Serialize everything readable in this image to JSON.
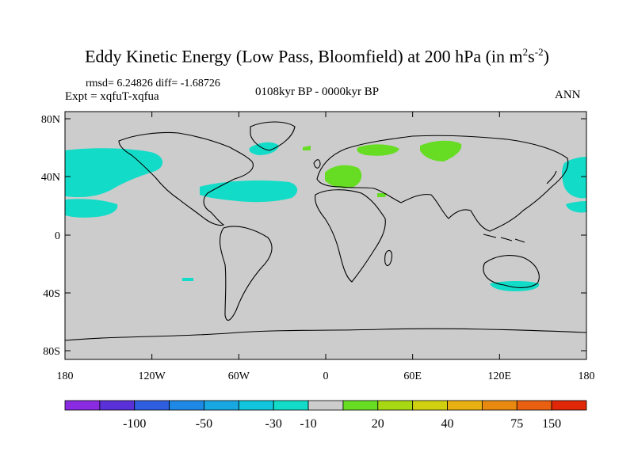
{
  "title": {
    "main": "Eddy Kinetic Energy (Low Pass, Bloomfield) at 200 hPa (in m",
    "sup1": "2",
    "mid": "s",
    "sup2": "-2",
    "close": ")"
  },
  "stats": "rmsd= 6.24826 diff= -1.68726",
  "expt": "Expt = xqfuT-xqfua",
  "period": "0108kyr BP - 0000kyr BP",
  "season": "ANN",
  "map": {
    "lat_ticks": [
      "80N",
      "40N",
      "0",
      "40S",
      "80S"
    ],
    "lon_ticks": [
      "180",
      "120W",
      "60W",
      "0",
      "60E",
      "120E",
      "180"
    ],
    "background_color": "#cccccc"
  },
  "colorbar": {
    "colors": [
      "#8a2be2",
      "#5a30d8",
      "#2f5fe0",
      "#1e88e5",
      "#18a7e0",
      "#12c4dc",
      "#12dcc8",
      "#cccccc",
      "#66dd22",
      "#a8d814",
      "#d0d010",
      "#e8b010",
      "#e88a10",
      "#e86010",
      "#e02808"
    ],
    "labels": [
      "-100",
      "-50",
      "-30",
      "-10",
      "20",
      "40",
      "75",
      "150"
    ]
  }
}
